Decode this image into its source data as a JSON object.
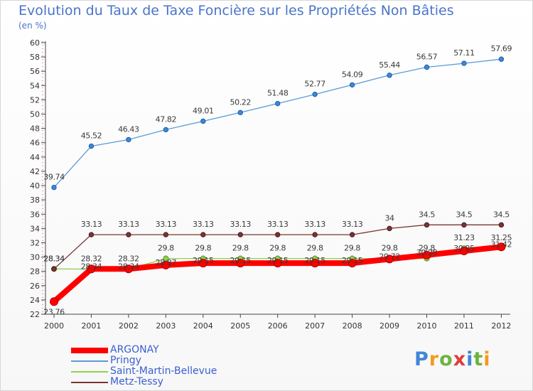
{
  "title": "Evolution du Taux de Taxe Foncière sur les Propriétés Non Bâties",
  "subtitle": "(en %)",
  "brand": {
    "letters": [
      "P",
      "r",
      "o",
      "x",
      "i",
      "t",
      "i"
    ],
    "colors": [
      "#3f87d9",
      "#f39b1c",
      "#6db33f",
      "#e23c3c",
      "#3f87d9",
      "#6db33f",
      "#f39b1c"
    ]
  },
  "chart_data": {
    "type": "line",
    "title": "Evolution du Taux de Taxe Foncière sur les Propriétés Non Bâties",
    "ylabel": "(en %)",
    "xlabel": "",
    "x": [
      "2000",
      "2001",
      "2002",
      "2003",
      "2004",
      "2005",
      "2006",
      "2007",
      "2008",
      "2009",
      "2010",
      "2011",
      "2012"
    ],
    "ylim": [
      22,
      60
    ],
    "yticks": [
      22,
      24,
      26,
      28,
      30,
      32,
      34,
      36,
      38,
      40,
      42,
      44,
      46,
      48,
      50,
      52,
      54,
      56,
      58,
      60
    ],
    "grid": false,
    "series": [
      {
        "name": "ARGONAY",
        "color": "#ff0000",
        "values": [
          23.76,
          28.34,
          28.34,
          28.87,
          29.15,
          29.15,
          29.15,
          29.15,
          29.15,
          29.72,
          30.28,
          30.85,
          31.42
        ],
        "labels": [
          "23.76",
          "28.34",
          "28.34",
          "28.87",
          "29.15",
          "29.15",
          "29.15",
          "29.15",
          "29.15",
          "29.72",
          "30.28",
          "30.85",
          "31.42"
        ]
      },
      {
        "name": "Pringy",
        "color": "#5b9bd5",
        "values": [
          39.74,
          45.52,
          46.43,
          47.82,
          49.01,
          50.22,
          51.48,
          52.77,
          54.09,
          55.44,
          56.57,
          57.11,
          57.69
        ],
        "labels": [
          "39.74",
          "45.52",
          "46.43",
          "47.82",
          "49.01",
          "50.22",
          "51.48",
          "52.77",
          "54.09",
          "55.44",
          "56.57",
          "57.11",
          "57.69"
        ]
      },
      {
        "name": "Saint-Martin-Bellevue",
        "color": "#8fd14f",
        "values": [
          28.34,
          28.32,
          28.32,
          29.8,
          29.8,
          29.8,
          29.8,
          29.8,
          29.8,
          29.8,
          29.8,
          31.23,
          31.25
        ],
        "labels": [
          "28.34",
          "28.32",
          "28.32",
          "29.8",
          "29.8",
          "29.8",
          "29.8",
          "29.8",
          "29.8",
          "29.8",
          "29.8",
          "31.23",
          "31.25"
        ]
      },
      {
        "name": "Metz-Tessy",
        "color": "#7b3434",
        "values": [
          28.34,
          33.13,
          33.13,
          33.13,
          33.13,
          33.13,
          33.13,
          33.13,
          33.13,
          34,
          34.5,
          34.5,
          34.5
        ],
        "labels": [
          "28.34",
          "33.13",
          "33.13",
          "33.13",
          "33.13",
          "33.13",
          "33.13",
          "33.13",
          "33.13",
          "34",
          "34.5",
          "34.5",
          "34.5"
        ]
      }
    ],
    "legend": {
      "position": "bottom-left",
      "entries": [
        "ARGONAY",
        "Pringy",
        "Saint-Martin-Bellevue",
        "Metz-Tessy"
      ]
    }
  }
}
